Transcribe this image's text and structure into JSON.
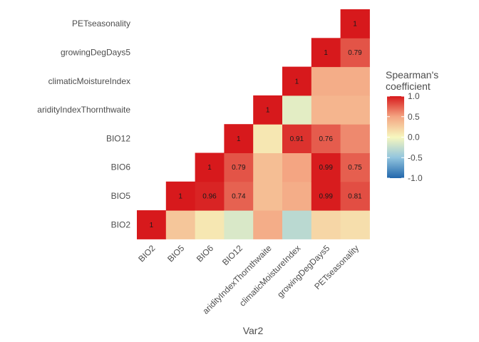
{
  "chart_data": {
    "type": "heatmap",
    "xlabel": "Var2",
    "ylabel": "",
    "variables": [
      "BIO2",
      "BIO5",
      "BIO6",
      "BIO12",
      "aridityIndexThornthwaite",
      "climaticMoistureIndex",
      "growingDegDays5",
      "PETseasonality"
    ],
    "x_tick_labels": [
      "BIO2",
      "BIO5",
      "BIO6",
      "BIO12",
      "aridityIndexThornthwaite",
      "climaticMoistureIndex",
      "growingDegDays5",
      "PETseasonality"
    ],
    "y_tick_labels": [
      "BIO2",
      "BIO5",
      "BIO6",
      "BIO12",
      "aridityIndexThornthwaite",
      "climaticMoistureIndex",
      "growingDegDays5",
      "PETseasonality"
    ],
    "cells": [
      {
        "x": "BIO2",
        "y": "BIO2",
        "value": 1,
        "label": "1"
      },
      {
        "x": "BIO5",
        "y": "BIO2",
        "value": 0.3
      },
      {
        "x": "BIO5",
        "y": "BIO5",
        "value": 1,
        "label": "1"
      },
      {
        "x": "BIO6",
        "y": "BIO2",
        "value": 0.1
      },
      {
        "x": "BIO6",
        "y": "BIO5",
        "value": 0.96,
        "label": "0.96"
      },
      {
        "x": "BIO6",
        "y": "BIO6",
        "value": 1,
        "label": "1"
      },
      {
        "x": "BIO12",
        "y": "BIO2",
        "value": -0.15
      },
      {
        "x": "BIO12",
        "y": "BIO5",
        "value": 0.74,
        "label": "0.74"
      },
      {
        "x": "BIO12",
        "y": "BIO6",
        "value": 0.79,
        "label": "0.79"
      },
      {
        "x": "BIO12",
        "y": "BIO12",
        "value": 1,
        "label": "1"
      },
      {
        "x": "aridityIndexThornthwaite",
        "y": "BIO2",
        "value": 0.45
      },
      {
        "x": "aridityIndexThornthwaite",
        "y": "BIO5",
        "value": 0.35
      },
      {
        "x": "aridityIndexThornthwaite",
        "y": "BIO6",
        "value": 0.35
      },
      {
        "x": "aridityIndexThornthwaite",
        "y": "BIO12",
        "value": 0.1
      },
      {
        "x": "aridityIndexThornthwaite",
        "y": "aridityIndexThornthwaite",
        "value": 1,
        "label": "1"
      },
      {
        "x": "climaticMoistureIndex",
        "y": "BIO2",
        "value": -0.3
      },
      {
        "x": "climaticMoistureIndex",
        "y": "BIO5",
        "value": 0.45
      },
      {
        "x": "climaticMoistureIndex",
        "y": "BIO6",
        "value": 0.5
      },
      {
        "x": "climaticMoistureIndex",
        "y": "BIO12",
        "value": 0.91,
        "label": "0.91"
      },
      {
        "x": "climaticMoistureIndex",
        "y": "aridityIndexThornthwaite",
        "value": -0.1
      },
      {
        "x": "climaticMoistureIndex",
        "y": "climaticMoistureIndex",
        "value": 1,
        "label": "1"
      },
      {
        "x": "growingDegDays5",
        "y": "BIO2",
        "value": 0.2
      },
      {
        "x": "growingDegDays5",
        "y": "BIO5",
        "value": 0.99,
        "label": "0.99"
      },
      {
        "x": "growingDegDays5",
        "y": "BIO6",
        "value": 0.99,
        "label": "0.99"
      },
      {
        "x": "growingDegDays5",
        "y": "BIO12",
        "value": 0.76,
        "label": "0.76"
      },
      {
        "x": "growingDegDays5",
        "y": "aridityIndexThornthwaite",
        "value": 0.4
      },
      {
        "x": "growingDegDays5",
        "y": "climaticMoistureIndex",
        "value": 0.45
      },
      {
        "x": "growingDegDays5",
        "y": "growingDegDays5",
        "value": 1,
        "label": "1"
      },
      {
        "x": "PETseasonality",
        "y": "BIO2",
        "value": 0.15
      },
      {
        "x": "PETseasonality",
        "y": "BIO5",
        "value": 0.81,
        "label": "0.81"
      },
      {
        "x": "PETseasonality",
        "y": "BIO6",
        "value": 0.75,
        "label": "0.75"
      },
      {
        "x": "PETseasonality",
        "y": "BIO12",
        "value": 0.6
      },
      {
        "x": "PETseasonality",
        "y": "aridityIndexThornthwaite",
        "value": 0.4
      },
      {
        "x": "PETseasonality",
        "y": "climaticMoistureIndex",
        "value": 0.45
      },
      {
        "x": "PETseasonality",
        "y": "growingDegDays5",
        "value": 0.79,
        "label": "0.79"
      },
      {
        "x": "PETseasonality",
        "y": "PETseasonality",
        "value": 1,
        "label": "1"
      }
    ],
    "color_scale": {
      "low": "#2166AC",
      "low_mid": "#92C5DE",
      "mid": "#F7F7BE",
      "high_mid": "#F4A582",
      "high": "#D7191C",
      "limits": [
        -1,
        1
      ]
    },
    "legend": {
      "title_lines": [
        "Spearman's",
        "coefficient"
      ],
      "ticks": [
        {
          "value": 1,
          "label": "1.0"
        },
        {
          "value": 0.5,
          "label": "0.5"
        },
        {
          "value": 0,
          "label": "0.0"
        },
        {
          "value": -0.5,
          "label": "-0.5"
        },
        {
          "value": -1,
          "label": "-1.0"
        }
      ],
      "position": "right"
    },
    "grid": false
  }
}
